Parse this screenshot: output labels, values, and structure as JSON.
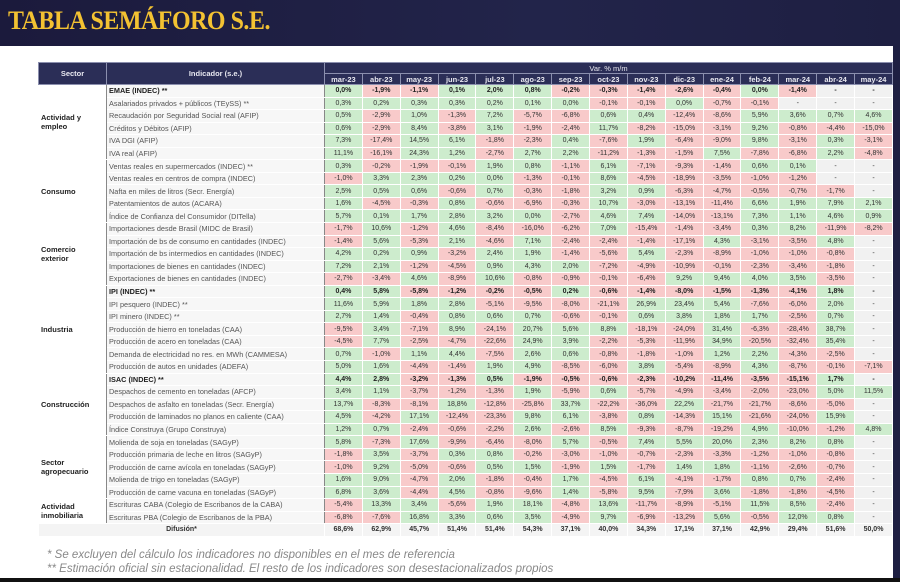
{
  "title": "TABLA SEMÁFORO S.E.",
  "header": {
    "sector": "Sector",
    "indicador": "Indicador (s.e.)",
    "var": "Var. % m/m",
    "months": [
      "mar-23",
      "abr-23",
      "may-23",
      "jun-23",
      "jul-23",
      "ago-23",
      "sep-23",
      "oct-23",
      "nov-23",
      "dic-23",
      "ene-24",
      "feb-24",
      "mar-24",
      "abr-24",
      "may-24"
    ]
  },
  "colors": {
    "positive": "#cdeccd",
    "negative": "#f8caca",
    "na": "#f1f1f1",
    "header": "#2b2e57",
    "title": "#f3c232"
  },
  "sectors": [
    {
      "name": "Actividad y empleo",
      "rows": [
        {
          "label": "EMAE (INDEC) **",
          "bold": true,
          "values": [
            "0,0%",
            "-1,9%",
            "-1,1%",
            "0,1%",
            "2,0%",
            "0,8%",
            "-0,2%",
            "-0,3%",
            "-1,4%",
            "-2,6%",
            "-0,4%",
            "0,0%",
            "-1,4%",
            "-",
            "-"
          ]
        },
        {
          "label": "Asalariados privados + públicos (TEySS) **",
          "values": [
            "0,3%",
            "0,2%",
            "0,3%",
            "0,3%",
            "0,2%",
            "0,1%",
            "0,0%",
            "-0,1%",
            "-0,1%",
            "0,0%",
            "-0,7%",
            "-0,1%",
            "-",
            "-",
            "-"
          ]
        },
        {
          "label": "Recaudación por Seguridad Social real (AFIP)",
          "values": [
            "0,5%",
            "-2,9%",
            "1,0%",
            "-1,3%",
            "7,2%",
            "-5,7%",
            "-6,8%",
            "0,6%",
            "0,4%",
            "-12,4%",
            "-8,6%",
            "5,9%",
            "3,6%",
            "0,7%",
            "4,6%"
          ]
        },
        {
          "label": "Créditos y Débitos (AFIP)",
          "values": [
            "0,6%",
            "-2,9%",
            "8,4%",
            "-3,8%",
            "3,1%",
            "-1,9%",
            "-2,4%",
            "11,7%",
            "-8,2%",
            "-15,0%",
            "-3,1%",
            "9,2%",
            "-0,8%",
            "-4,4%",
            "-15,0%"
          ]
        },
        {
          "label": "IVA DGI (AFIP)",
          "values": [
            "7,3%",
            "-17,4%",
            "14,5%",
            "6,1%",
            "-1,8%",
            "-2,3%",
            "0,4%",
            "-7,6%",
            "1,9%",
            "-6,4%",
            "-9,0%",
            "9,8%",
            "-3,1%",
            "0,3%",
            "-3,1%"
          ]
        },
        {
          "label": "IVA real (AFIP)",
          "values": [
            "11,1%",
            "-16,1%",
            "24,3%",
            "1,2%",
            "-2,7%",
            "2,7%",
            "2,2%",
            "-11,2%",
            "-1,3%",
            "-1,5%",
            "7,5%",
            "-7,8%",
            "-6,8%",
            "2,2%",
            "-4,8%"
          ]
        }
      ]
    },
    {
      "name": "Consumo",
      "rows": [
        {
          "label": "Ventas reales en supermercados (INDEC) **",
          "values": [
            "0,3%",
            "-0,2%",
            "-1,9%",
            "-0,1%",
            "1,9%",
            "0,8%",
            "-1,1%",
            "6,1%",
            "-7,1%",
            "-9,3%",
            "-1,4%",
            "0,6%",
            "0,1%",
            "-",
            "-"
          ]
        },
        {
          "label": "Ventas reales en centros de compra (INDEC)",
          "values": [
            "-1,0%",
            "3,3%",
            "2,3%",
            "0,2%",
            "0,0%",
            "-1,3%",
            "-0,1%",
            "8,6%",
            "-4,5%",
            "-18,9%",
            "-3,5%",
            "-1,0%",
            "-1,2%",
            "-",
            "-"
          ]
        },
        {
          "label": "Nafta en miles de litros (Secr. Energía)",
          "values": [
            "2,5%",
            "0,5%",
            "0,6%",
            "-0,6%",
            "0,7%",
            "-0,3%",
            "-1,8%",
            "3,2%",
            "0,9%",
            "-6,3%",
            "-4,7%",
            "-0,5%",
            "-0,7%",
            "-1,7%",
            "-"
          ]
        },
        {
          "label": "Patentamientos de autos (ACARA)",
          "values": [
            "1,6%",
            "-4,5%",
            "-0,3%",
            "0,8%",
            "-0,6%",
            "-6,9%",
            "-0,3%",
            "10,7%",
            "-3,0%",
            "-13,1%",
            "-11,4%",
            "6,6%",
            "1,9%",
            "7,9%",
            "2,1%"
          ]
        },
        {
          "label": "Índice de Confianza del Consumidor (DITella)",
          "values": [
            "5,7%",
            "0,1%",
            "1,7%",
            "2,8%",
            "3,2%",
            "0,0%",
            "-2,7%",
            "4,6%",
            "7,4%",
            "-14,0%",
            "-13,1%",
            "7,3%",
            "1,1%",
            "4,6%",
            "0,9%"
          ]
        }
      ]
    },
    {
      "name": "Comercio exterior",
      "rows": [
        {
          "label": "Importaciones desde Brasil (MIDC de Brasil)",
          "values": [
            "-1,7%",
            "10,6%",
            "-1,2%",
            "4,6%",
            "-8,4%",
            "-16,0%",
            "-6,2%",
            "7,0%",
            "-15,4%",
            "-1,4%",
            "-3,4%",
            "0,3%",
            "8,2%",
            "-11,9%",
            "-8,2%"
          ]
        },
        {
          "label": "Importación de bs de consumo en cantidades (INDEC)",
          "values": [
            "-1,4%",
            "5,6%",
            "-5,3%",
            "2,1%",
            "-4,6%",
            "7,1%",
            "-2,4%",
            "-2,4%",
            "-1,4%",
            "-17,1%",
            "4,3%",
            "-3,1%",
            "-3,5%",
            "4,8%",
            "-"
          ]
        },
        {
          "label": "Importación de bs intermedios en cantidades (INDEC)",
          "values": [
            "4,2%",
            "0,2%",
            "0,9%",
            "-3,2%",
            "2,4%",
            "1,9%",
            "-1,4%",
            "-5,6%",
            "5,4%",
            "-2,3%",
            "-8,9%",
            "-1,0%",
            "-1,0%",
            "-0,8%",
            "-"
          ]
        },
        {
          "label": "Importaciones de bienes en cantidades (INDEC)",
          "values": [
            "7,2%",
            "2,1%",
            "-1,2%",
            "-4,5%",
            "0,9%",
            "4,3%",
            "2,0%",
            "-7,2%",
            "-4,9%",
            "-10,9%",
            "-0,1%",
            "-2,3%",
            "-3,4%",
            "-1,8%",
            "-"
          ]
        },
        {
          "label": "Exportaciones de bienes en cantidades (INDEC)",
          "values": [
            "-2,7%",
            "-3,4%",
            "4,6%",
            "-8,9%",
            "10,6%",
            "-0,8%",
            "-0,9%",
            "-0,1%",
            "-6,4%",
            "9,2%",
            "9,4%",
            "4,0%",
            "3,5%",
            "-3,5%",
            "-"
          ]
        }
      ]
    },
    {
      "name": "Industria",
      "rows": [
        {
          "label": "IPI (INDEC) **",
          "bold": true,
          "values": [
            "0,4%",
            "5,8%",
            "-5,8%",
            "-1,2%",
            "-0,2%",
            "-0,5%",
            "0,2%",
            "-0,6%",
            "-1,4%",
            "-8,0%",
            "-1,5%",
            "-1,3%",
            "-4,1%",
            "1,8%",
            "-"
          ]
        },
        {
          "label": "IPI pesquero (INDEC) **",
          "values": [
            "11,6%",
            "5,9%",
            "1,8%",
            "2,8%",
            "-5,1%",
            "-9,5%",
            "-8,0%",
            "-21,1%",
            "26,9%",
            "23,4%",
            "5,4%",
            "-7,6%",
            "-6,0%",
            "2,0%",
            "-"
          ]
        },
        {
          "label": "IPI minero (INDEC) **",
          "values": [
            "2,7%",
            "1,4%",
            "-0,4%",
            "0,8%",
            "0,6%",
            "0,7%",
            "-0,6%",
            "-0,1%",
            "0,6%",
            "3,8%",
            "1,8%",
            "1,7%",
            "-2,5%",
            "0,7%",
            "-"
          ]
        },
        {
          "label": "Producción de hierro en toneladas (CAA)",
          "values": [
            "-9,5%",
            "3,4%",
            "-7,1%",
            "8,9%",
            "-24,1%",
            "20,7%",
            "5,6%",
            "8,8%",
            "-18,1%",
            "-24,0%",
            "31,4%",
            "-6,3%",
            "-28,4%",
            "38,7%",
            "-"
          ]
        },
        {
          "label": "Producción de acero en toneladas (CAA)",
          "values": [
            "-4,5%",
            "7,7%",
            "-2,5%",
            "-4,7%",
            "-22,6%",
            "24,9%",
            "3,9%",
            "-2,2%",
            "-5,3%",
            "-11,9%",
            "34,9%",
            "-20,5%",
            "-32,4%",
            "35,4%",
            "-"
          ]
        },
        {
          "label": "Demanda de electricidad no res. en MWh (CAMMESA)",
          "values": [
            "0,7%",
            "-1,0%",
            "1,1%",
            "4,4%",
            "-7,5%",
            "2,6%",
            "0,6%",
            "-0,8%",
            "-1,8%",
            "-1,0%",
            "1,2%",
            "2,2%",
            "-4,3%",
            "-2,5%",
            "-"
          ]
        },
        {
          "label": "Producción de autos en unidades (ADEFA)",
          "values": [
            "5,0%",
            "1,6%",
            "-4,4%",
            "-1,4%",
            "1,9%",
            "4,9%",
            "-8,5%",
            "-6,0%",
            "3,8%",
            "-5,4%",
            "-8,9%",
            "4,3%",
            "-8,7%",
            "-0,1%",
            "-7,1%"
          ]
        }
      ]
    },
    {
      "name": "Construcción",
      "rows": [
        {
          "label": "ISAC (INDEC) **",
          "bold": true,
          "values": [
            "4,4%",
            "2,8%",
            "-3,2%",
            "-1,3%",
            "0,5%",
            "-1,9%",
            "-0,5%",
            "-0,6%",
            "-2,3%",
            "-10,2%",
            "-11,4%",
            "-3,5%",
            "-15,1%",
            "1,7%",
            "-"
          ]
        },
        {
          "label": "Despachos de cemento en toneladas (AFCP)",
          "values": [
            "3,4%",
            "1,1%",
            "-3,7%",
            "-1,2%",
            "-1,3%",
            "1,9%",
            "-5,9%",
            "0,6%",
            "-5,7%",
            "-4,9%",
            "-3,4%",
            "-2,0%",
            "-23,0%",
            "5,0%",
            "11,5%"
          ]
        },
        {
          "label": "Despachos de asfalto en toneladas (Secr. Energía)",
          "values": [
            "13,7%",
            "-8,3%",
            "-8,1%",
            "18,8%",
            "-12,8%",
            "-25,8%",
            "33,7%",
            "-22,2%",
            "-36,0%",
            "22,2%",
            "-21,7%",
            "-21,7%",
            "-8,6%",
            "-5,0%",
            "-"
          ]
        },
        {
          "label": "Producción de laminados no planos en caliente (CAA)",
          "values": [
            "4,5%",
            "-4,2%",
            "17,1%",
            "-12,4%",
            "-23,3%",
            "9,8%",
            "6,1%",
            "-3,8%",
            "0,8%",
            "-14,3%",
            "15,1%",
            "-21,6%",
            "-24,0%",
            "15,9%",
            "-"
          ]
        },
        {
          "label": "Índice Construya (Grupo Construya)",
          "values": [
            "1,2%",
            "0,7%",
            "-2,4%",
            "-0,6%",
            "-2,2%",
            "2,6%",
            "-2,6%",
            "8,5%",
            "-9,3%",
            "-8,7%",
            "-19,2%",
            "4,9%",
            "-10,0%",
            "-1,2%",
            "4,8%"
          ]
        }
      ]
    },
    {
      "name": "Sector agropecuario",
      "rows": [
        {
          "label": "Molienda de soja en toneladas (SAGyP)",
          "values": [
            "5,8%",
            "-7,3%",
            "17,6%",
            "-9,9%",
            "-6,4%",
            "-8,0%",
            "5,7%",
            "-0,5%",
            "7,4%",
            "5,5%",
            "20,0%",
            "2,3%",
            "8,2%",
            "0,8%",
            "-"
          ]
        },
        {
          "label": "Producción primaria de leche en litros (SAGyP)",
          "values": [
            "-1,8%",
            "3,5%",
            "-3,7%",
            "0,3%",
            "0,8%",
            "-0,2%",
            "-3,0%",
            "-1,0%",
            "-0,7%",
            "-2,3%",
            "-3,3%",
            "-1,2%",
            "-1,0%",
            "-0,8%",
            "-"
          ]
        },
        {
          "label": "Producción de carne avícola en toneladas (SAGyP)",
          "values": [
            "-1,0%",
            "9,2%",
            "-5,0%",
            "-0,6%",
            "0,5%",
            "1,5%",
            "-1,9%",
            "1,5%",
            "-1,7%",
            "1,4%",
            "1,8%",
            "-1,1%",
            "-2,6%",
            "-0,7%",
            "-"
          ]
        },
        {
          "label": "Molienda de trigo en toneladas (SAGyP)",
          "values": [
            "1,6%",
            "9,0%",
            "-4,7%",
            "2,0%",
            "-1,8%",
            "-0,4%",
            "1,7%",
            "-4,5%",
            "6,1%",
            "-4,1%",
            "-1,7%",
            "0,8%",
            "0,7%",
            "-2,4%",
            "-"
          ]
        },
        {
          "label": "Producción de carne vacuna en toneladas (SAGyP)",
          "values": [
            "6,8%",
            "3,6%",
            "-4,4%",
            "4,5%",
            "-0,8%",
            "-9,6%",
            "1,4%",
            "-5,8%",
            "9,5%",
            "-7,9%",
            "3,6%",
            "-1,8%",
            "-1,8%",
            "-4,5%",
            "-"
          ]
        }
      ]
    },
    {
      "name": "Actividad inmobiliaria",
      "rows": [
        {
          "label": "Escrituras CABA (Colegio de Escribanos de la CABA)",
          "values": [
            "-5,4%",
            "13,3%",
            "3,4%",
            "-5,6%",
            "1,9%",
            "18,1%",
            "-4,8%",
            "13,6%",
            "-11,7%",
            "-8,9%",
            "-5,1%",
            "11,5%",
            "8,5%",
            "-2,4%",
            "-"
          ]
        },
        {
          "label": "Escrituras PBA (Colegio de Escribanos de la PBA)",
          "values": [
            "-6,8%",
            "-7,6%",
            "16,8%",
            "3,3%",
            "0,6%",
            "3,5%",
            "-4,9%",
            "9,7%",
            "-6,9%",
            "-13,2%",
            "5,6%",
            "-0,5%",
            "12,0%",
            "0,8%",
            "-"
          ]
        }
      ]
    }
  ],
  "difusion": {
    "label": "Difusión*",
    "values": [
      "68,6%",
      "62,9%",
      "45,7%",
      "51,4%",
      "51,4%",
      "54,3%",
      "37,1%",
      "40,0%",
      "34,3%",
      "17,1%",
      "37,1%",
      "42,9%",
      "29,4%",
      "51,6%",
      "50,0%"
    ]
  },
  "footnotes": [
    "* Se excluyen del cálculo los indicadores no disponibles en el mes de referencia",
    "** Estimación oficial sin estacionalidad. El resto de los indicadores son desestacionalizados propios"
  ]
}
